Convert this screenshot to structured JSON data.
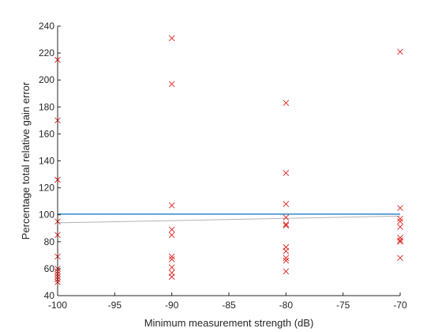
{
  "chart_data": {
    "type": "scatter",
    "xlabel": "Minimum measurement strength (dB)",
    "ylabel": "Percentage total relative gain error",
    "xlim": [
      -100,
      -70
    ],
    "ylim": [
      40,
      240
    ],
    "xticks": [
      -100,
      -95,
      -90,
      -85,
      -80,
      -75,
      -70
    ],
    "yticks": [
      40,
      60,
      80,
      100,
      120,
      140,
      160,
      180,
      200,
      220,
      240
    ],
    "grid": false,
    "marker": "x",
    "points": [
      {
        "x": -100,
        "y": 215
      },
      {
        "x": -100,
        "y": 170
      },
      {
        "x": -100,
        "y": 126
      },
      {
        "x": -100,
        "y": 95
      },
      {
        "x": -100,
        "y": 85
      },
      {
        "x": -100,
        "y": 69
      },
      {
        "x": -100,
        "y": 60
      },
      {
        "x": -100,
        "y": 58
      },
      {
        "x": -100,
        "y": 56
      },
      {
        "x": -100,
        "y": 54
      },
      {
        "x": -100,
        "y": 52
      },
      {
        "x": -100,
        "y": 50
      },
      {
        "x": -90,
        "y": 231
      },
      {
        "x": -90,
        "y": 197
      },
      {
        "x": -90,
        "y": 107
      },
      {
        "x": -90,
        "y": 89
      },
      {
        "x": -90,
        "y": 85
      },
      {
        "x": -90,
        "y": 69
      },
      {
        "x": -90,
        "y": 67
      },
      {
        "x": -90,
        "y": 61
      },
      {
        "x": -90,
        "y": 57
      },
      {
        "x": -90,
        "y": 54
      },
      {
        "x": -80,
        "y": 183
      },
      {
        "x": -80,
        "y": 131
      },
      {
        "x": -80,
        "y": 108
      },
      {
        "x": -80,
        "y": 98
      },
      {
        "x": -80,
        "y": 93
      },
      {
        "x": -80,
        "y": 92
      },
      {
        "x": -80,
        "y": 76
      },
      {
        "x": -80,
        "y": 73
      },
      {
        "x": -80,
        "y": 68
      },
      {
        "x": -80,
        "y": 66
      },
      {
        "x": -80,
        "y": 58
      },
      {
        "x": -70,
        "y": 221
      },
      {
        "x": -70,
        "y": 105
      },
      {
        "x": -70,
        "y": 97
      },
      {
        "x": -70,
        "y": 95
      },
      {
        "x": -70,
        "y": 91
      },
      {
        "x": -70,
        "y": 83
      },
      {
        "x": -70,
        "y": 81
      },
      {
        "x": -70,
        "y": 80
      },
      {
        "x": -70,
        "y": 68
      }
    ],
    "lines": [
      {
        "x": [
          -100,
          -70
        ],
        "y": [
          100.5,
          100.5
        ],
        "color": "#0072bd"
      },
      {
        "x": [
          -100,
          -70
        ],
        "y": [
          94,
          99
        ],
        "color": "#b4b4b4"
      }
    ],
    "marker_color": "#e0231f"
  }
}
